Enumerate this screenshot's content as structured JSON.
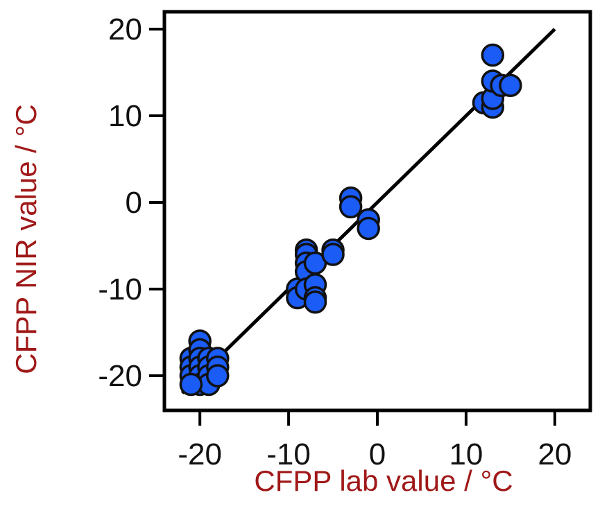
{
  "chart_data": {
    "type": "scatter",
    "title": "",
    "xlabel": "CFPP lab value / °C",
    "ylabel": "CFPP NIR value / °C",
    "xlim": [
      -24,
      24
    ],
    "ylim": [
      -24,
      22
    ],
    "xticks": [
      "-20",
      "-10",
      "0",
      "10",
      "20"
    ],
    "yticks": [
      "20",
      "10",
      "0",
      "-10",
      "-20"
    ],
    "grid": false,
    "legend": "none",
    "series": [
      {
        "points": [
          [
            -21,
            -18
          ],
          [
            -21,
            -19
          ],
          [
            -21,
            -20
          ],
          [
            -20,
            -16
          ],
          [
            -20,
            -17
          ],
          [
            -20,
            -18
          ],
          [
            -20,
            -19
          ],
          [
            -20,
            -20
          ],
          [
            -20,
            -21
          ],
          [
            -19,
            -18
          ],
          [
            -19,
            -19
          ],
          [
            -19,
            -20
          ],
          [
            -19,
            -21
          ],
          [
            -18,
            -18
          ],
          [
            -18,
            -19
          ],
          [
            -18,
            -20
          ],
          [
            -21,
            -21
          ],
          [
            -9,
            -10
          ],
          [
            -9,
            -11
          ],
          [
            -8,
            -5.5
          ],
          [
            -8,
            -6
          ],
          [
            -8,
            -7
          ],
          [
            -8,
            -8
          ],
          [
            -8,
            -10
          ],
          [
            -7,
            -7
          ],
          [
            -7,
            -9.5
          ],
          [
            -7,
            -11
          ],
          [
            -7,
            -11.5
          ],
          [
            -5,
            -5.5
          ],
          [
            -5,
            -6
          ],
          [
            -3,
            0.5
          ],
          [
            -3,
            -0.5
          ],
          [
            -1,
            -2
          ],
          [
            -1,
            -3
          ],
          [
            12,
            11.5
          ],
          [
            13,
            11
          ],
          [
            13,
            12
          ],
          [
            13,
            14
          ],
          [
            13,
            17
          ],
          [
            14,
            13.5
          ],
          [
            15,
            13.5
          ]
        ]
      }
    ],
    "fit_line": {
      "x": [
        -22,
        20
      ],
      "y": [
        -22,
        20
      ]
    },
    "colors": {
      "marker_fill": "#1a5cf5",
      "marker_stroke": "#111111",
      "line": "#000000",
      "axis": "#000000",
      "axis_title": "#a01818"
    }
  }
}
